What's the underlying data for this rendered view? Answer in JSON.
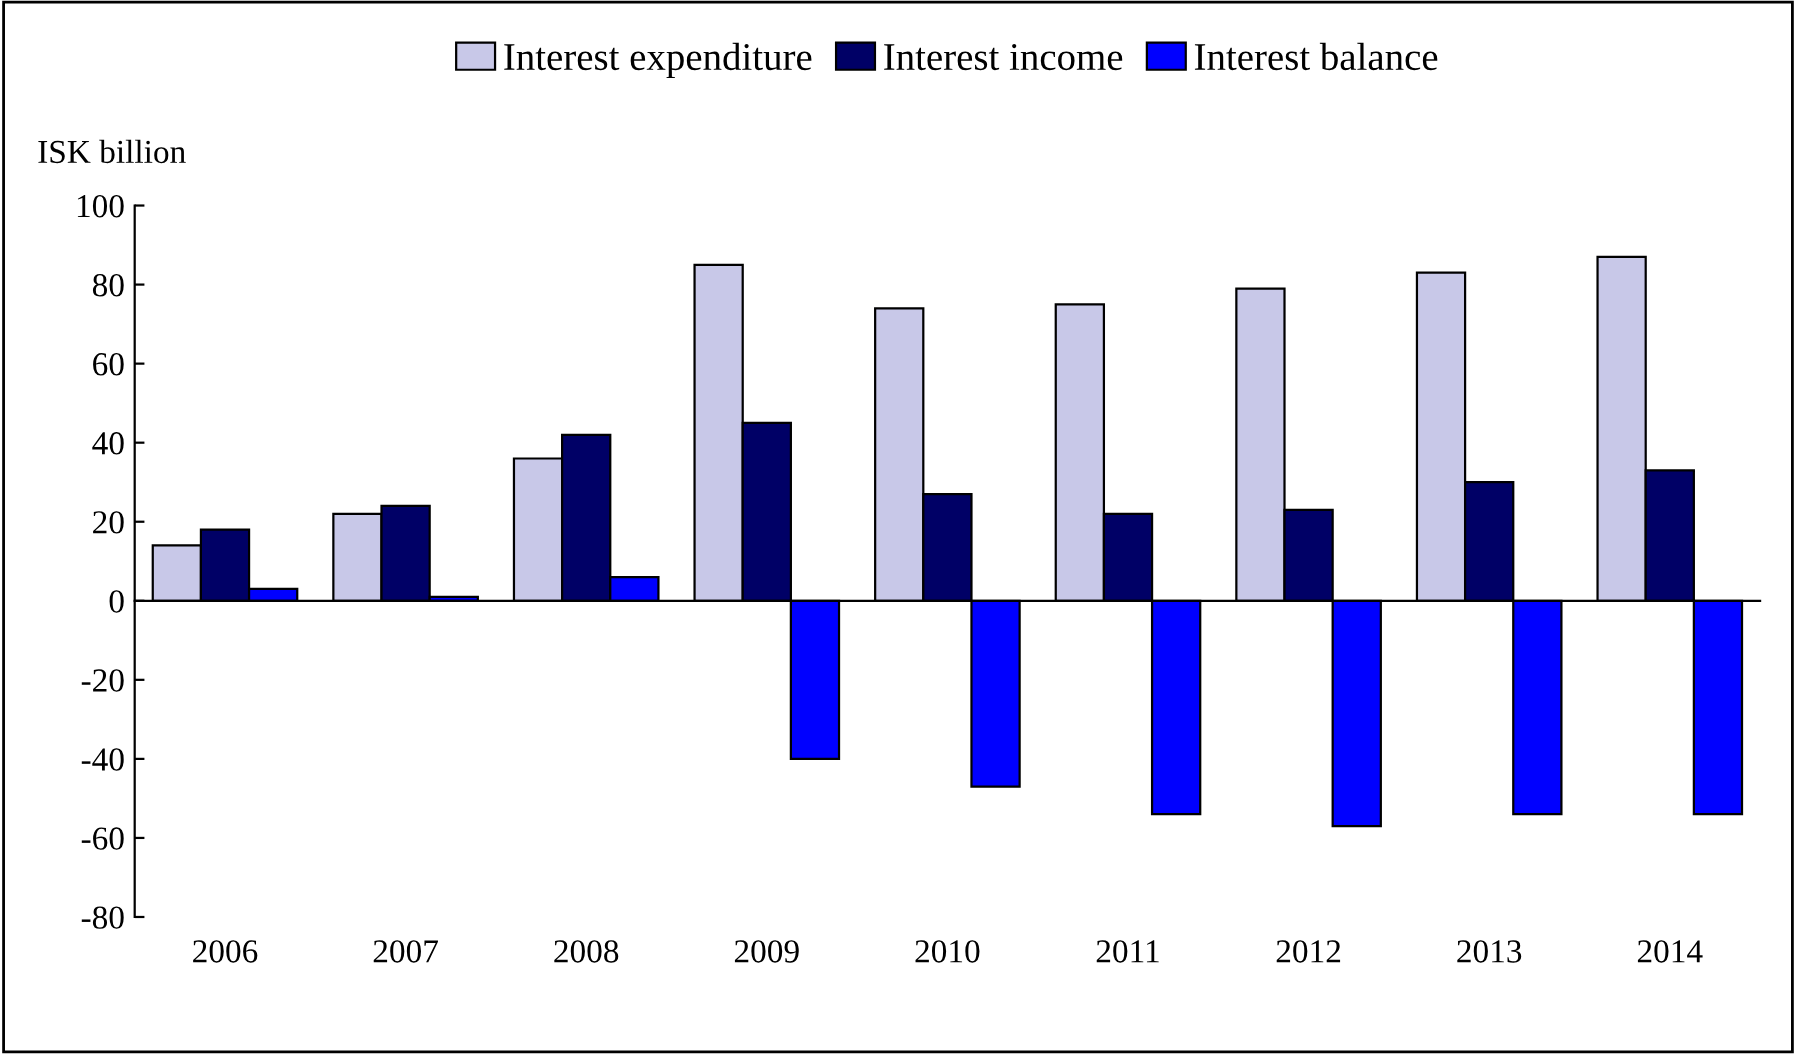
{
  "chart_data": {
    "type": "bar",
    "ylabel": "ISK billion",
    "categories": [
      "2006",
      "2007",
      "2008",
      "2009",
      "2010",
      "2011",
      "2012",
      "2013",
      "2014"
    ],
    "series": [
      {
        "name": "Interest expenditure",
        "color": "#c8c8e8",
        "values": [
          14,
          22,
          36,
          85,
          74,
          75,
          79,
          83,
          87
        ]
      },
      {
        "name": "Interest income",
        "color": "#000066",
        "values": [
          18,
          24,
          42,
          45,
          27,
          22,
          23,
          30,
          33
        ]
      },
      {
        "name": "Interest balance",
        "color": "#0000ff",
        "values": [
          3,
          1,
          6,
          -40,
          -47,
          -54,
          -57,
          -54,
          -54
        ]
      }
    ],
    "ylim": [
      -80,
      100
    ],
    "yticks": [
      -80,
      -60,
      -40,
      -20,
      0,
      20,
      40,
      60,
      80,
      100
    ],
    "legend": "top"
  }
}
